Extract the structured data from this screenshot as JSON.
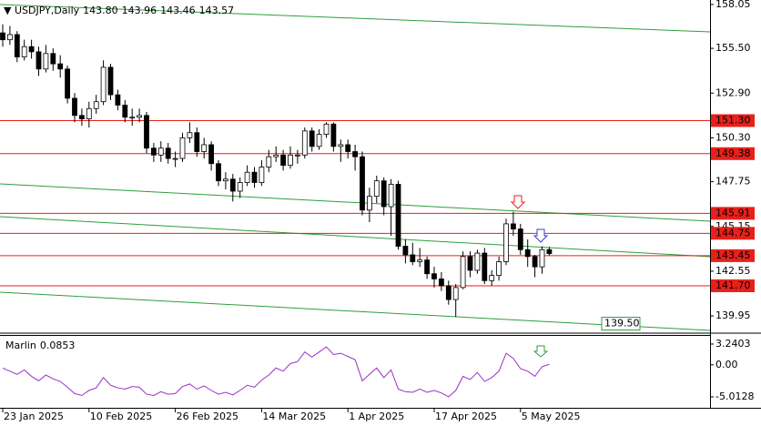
{
  "chart_data": [
    {
      "type": "candlestick",
      "title": "USDJPY,Daily",
      "last_ohlc": [
        "143.80",
        "143.96",
        "143.46",
        "143.57"
      ],
      "categories": [
        "23 Jan 2025",
        null,
        null,
        null,
        null,
        null,
        null,
        null,
        null,
        null,
        null,
        null,
        "10 Feb 2025",
        null,
        null,
        null,
        null,
        null,
        null,
        null,
        null,
        null,
        null,
        null,
        "26 Feb 2025",
        null,
        null,
        null,
        null,
        null,
        null,
        null,
        null,
        null,
        null,
        null,
        "14 Mar 2025",
        null,
        null,
        null,
        null,
        null,
        null,
        null,
        null,
        null,
        null,
        null,
        "1 Apr 2025",
        null,
        null,
        null,
        null,
        null,
        null,
        null,
        null,
        null,
        null,
        null,
        "17 Apr 2025",
        null,
        null,
        null,
        null,
        null,
        null,
        null,
        null,
        null,
        null,
        null,
        "5 May 2025",
        null,
        null,
        null,
        null
      ],
      "open": [
        156.4,
        156.0,
        156.3,
        155.0,
        155.6,
        155.3,
        154.3,
        155.2,
        154.6,
        154.3,
        152.6,
        151.6,
        151.4,
        152.0,
        152.4,
        154.4,
        152.8,
        152.2,
        151.5,
        151.5,
        151.6,
        149.7,
        149.3,
        149.7,
        149.1,
        149.1,
        150.3,
        150.6,
        149.5,
        149.9,
        148.8,
        147.8,
        147.9,
        147.2,
        147.7,
        148.3,
        147.7,
        148.6,
        149.2,
        149.3,
        148.7,
        149.3,
        149.3,
        150.7,
        149.8,
        150.5,
        151.1,
        149.8,
        149.9,
        149.5,
        149.2,
        146.1,
        146.9,
        147.8,
        146.3,
        147.6,
        144.0,
        143.5,
        143.1,
        143.2,
        142.4,
        142.1,
        141.7,
        140.9,
        141.6,
        143.4,
        142.6,
        143.6,
        142.0,
        142.3,
        143.1,
        145.3,
        145.0,
        143.8,
        143.4,
        142.8,
        143.8
      ],
      "high": [
        156.9,
        156.8,
        156.5,
        156.0,
        156.0,
        155.6,
        155.7,
        155.5,
        155.1,
        154.5,
        152.9,
        152.0,
        152.4,
        152.8,
        154.8,
        154.6,
        153.1,
        152.5,
        152.0,
        152.0,
        151.8,
        150.0,
        150.1,
        150.0,
        149.5,
        150.6,
        151.2,
        150.9,
        150.3,
        150.1,
        149.0,
        148.3,
        148.2,
        148.0,
        148.7,
        148.6,
        149.0,
        149.6,
        149.8,
        149.6,
        149.8,
        149.6,
        150.9,
        150.9,
        150.8,
        151.2,
        151.2,
        150.2,
        150.2,
        149.9,
        149.5,
        147.4,
        148.1,
        148.0,
        147.9,
        147.8,
        144.4,
        144.2,
        143.9,
        143.4,
        142.8,
        142.5,
        142.0,
        141.8,
        143.7,
        143.7,
        143.8,
        143.9,
        142.6,
        143.4,
        145.6,
        146.0,
        145.3,
        144.4,
        143.5,
        144.0,
        143.96
      ],
      "low": [
        155.6,
        155.7,
        154.7,
        154.8,
        154.9,
        153.9,
        154.1,
        154.2,
        153.8,
        152.3,
        151.2,
        151.0,
        150.9,
        151.7,
        152.2,
        152.5,
        151.9,
        151.2,
        151.0,
        151.2,
        149.4,
        148.9,
        148.9,
        148.8,
        148.6,
        148.9,
        150.0,
        149.2,
        149.1,
        148.4,
        147.5,
        147.3,
        146.6,
        146.8,
        147.5,
        147.4,
        147.5,
        148.3,
        148.9,
        148.4,
        148.5,
        148.8,
        149.1,
        149.5,
        149.6,
        150.3,
        149.5,
        148.9,
        149.1,
        148.4,
        145.8,
        145.4,
        146.5,
        145.8,
        144.6,
        143.8,
        143.0,
        142.9,
        142.8,
        142.1,
        141.6,
        141.4,
        140.6,
        139.9,
        141.5,
        142.2,
        142.4,
        141.8,
        141.7,
        142.0,
        142.9,
        144.6,
        143.5,
        142.8,
        142.2,
        142.4,
        143.46
      ],
      "close": [
        156.0,
        156.3,
        155.0,
        155.6,
        155.3,
        154.3,
        155.2,
        154.6,
        154.3,
        152.6,
        151.6,
        151.4,
        152.0,
        152.4,
        154.4,
        152.8,
        152.2,
        151.5,
        151.5,
        151.6,
        149.7,
        149.3,
        149.7,
        149.1,
        149.1,
        150.3,
        150.6,
        149.5,
        149.9,
        148.8,
        147.8,
        147.9,
        147.2,
        147.7,
        148.3,
        147.7,
        148.6,
        149.2,
        149.3,
        148.7,
        149.3,
        149.3,
        150.7,
        149.8,
        150.5,
        151.1,
        149.8,
        149.9,
        149.5,
        149.2,
        146.1,
        146.9,
        147.8,
        146.3,
        147.6,
        144.0,
        143.5,
        143.1,
        143.2,
        142.4,
        142.1,
        141.7,
        140.9,
        141.6,
        143.4,
        142.6,
        143.6,
        142.0,
        142.3,
        143.1,
        145.3,
        145.0,
        143.8,
        143.4,
        142.8,
        143.8,
        143.57
      ],
      "up_color": "#ffffff",
      "down_color": "#000000",
      "ylim": [
        139.0,
        158.31
      ],
      "yticks": [
        158.05,
        {
          "value": 155.5,
          "label": "155.50"
        },
        {
          "value": 152.9,
          "label": "152.90"
        },
        {
          "value": 150.3,
          "label": "150.30"
        },
        147.75,
        145.15,
        142.55,
        139.95
      ],
      "levels": [
        {
          "value": 151.3,
          "label": "151.30"
        },
        {
          "value": 149.38,
          "label": "149.38"
        },
        {
          "value": 145.91,
          "label": "145.91"
        },
        {
          "value": 144.75,
          "label": "144.75"
        },
        {
          "value": 143.45,
          "label": "143.45"
        },
        {
          "value": 141.7,
          "label": "141.70"
        }
      ],
      "level_color": "#e8201a",
      "annotation": {
        "value": 139.5,
        "label": "139.50",
        "color": "#2e9e3e"
      }
    },
    {
      "type": "line",
      "title": "Marlin",
      "current": 0.0853,
      "color": "#9b30c8",
      "values": [
        -0.5,
        -1.0,
        -1.5,
        -0.8,
        -1.8,
        -2.5,
        -1.6,
        -2.2,
        -2.6,
        -3.5,
        -4.5,
        -4.8,
        -4.0,
        -3.6,
        -2.0,
        -3.2,
        -3.6,
        -3.8,
        -3.4,
        -3.5,
        -4.6,
        -4.8,
        -4.2,
        -4.6,
        -4.5,
        -3.4,
        -3.0,
        -3.8,
        -3.3,
        -4.0,
        -4.6,
        -4.3,
        -4.7,
        -4.0,
        -3.2,
        -3.5,
        -2.4,
        -1.6,
        -0.5,
        -1.0,
        0.2,
        0.5,
        2.0,
        1.2,
        2.0,
        2.8,
        1.6,
        1.8,
        1.3,
        0.8,
        -2.5,
        -1.5,
        -0.5,
        -2.0,
        -0.8,
        -3.8,
        -4.2,
        -4.3,
        -3.8,
        -4.3,
        -4.0,
        -4.4,
        -5.0,
        -4.0,
        -1.8,
        -2.3,
        -1.2,
        -2.6,
        -2.0,
        -1.0,
        1.8,
        1.0,
        -0.6,
        -1.0,
        -1.8,
        -0.3,
        0.0853
      ],
      "ylim": [
        -6.72,
        4.66
      ],
      "yticks": [
        3.2403,
        {
          "value": 0,
          "label": "0.00"
        },
        -5.0128
      ]
    }
  ]
}
